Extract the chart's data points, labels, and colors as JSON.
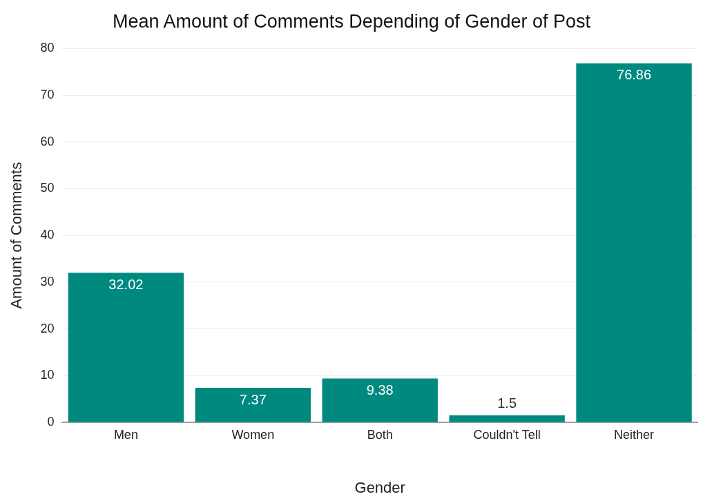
{
  "chart_data": {
    "type": "bar",
    "title": "Mean Amount of Comments Depending of Gender of Post",
    "xlabel": "Gender",
    "ylabel": "Amount of Comments",
    "categories": [
      "Men",
      "Women",
      "Both",
      "Couldn't Tell",
      "Neither"
    ],
    "values": [
      32.02,
      7.37,
      9.38,
      1.5,
      76.86
    ],
    "color": "#00897f",
    "ylim": [
      0,
      80
    ],
    "yticks": [
      0,
      10,
      20,
      30,
      40,
      50,
      60,
      70,
      80
    ],
    "grid": "y",
    "data_labels": true,
    "legend": false
  }
}
